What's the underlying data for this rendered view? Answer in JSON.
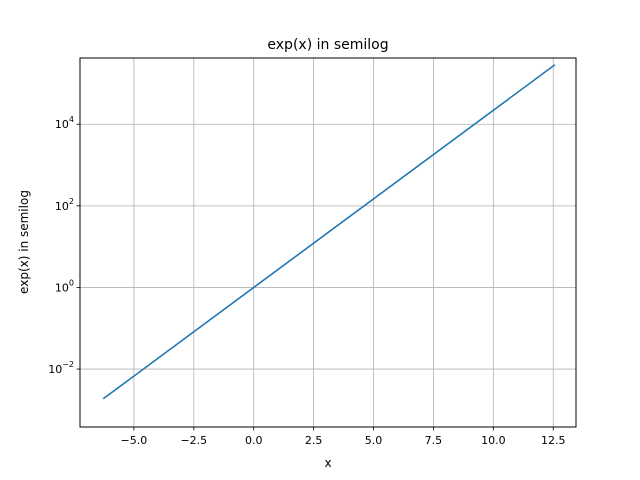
{
  "chart_data": {
    "type": "line",
    "title": "exp(x) in semilog",
    "xlabel": "x",
    "ylabel": "exp(x) in semilog",
    "yscale": "log",
    "grid": true,
    "xlim": [
      -7.25,
      13.45
    ],
    "ylim": [
      0.00038,
      420000
    ],
    "x_ticks": [
      {
        "value": -5.0,
        "label": "−5.0"
      },
      {
        "value": -2.5,
        "label": "−2.5"
      },
      {
        "value": 0.0,
        "label": "0.0"
      },
      {
        "value": 2.5,
        "label": "2.5"
      },
      {
        "value": 5.0,
        "label": "5.0"
      },
      {
        "value": 7.5,
        "label": "7.5"
      },
      {
        "value": 10.0,
        "label": "10.0"
      },
      {
        "value": 12.5,
        "label": "12.5"
      }
    ],
    "y_ticks": [
      {
        "value": 0.01,
        "base": "10",
        "exp": "−2"
      },
      {
        "value": 1,
        "base": "10",
        "exp": "0"
      },
      {
        "value": 100,
        "base": "10",
        "exp": "2"
      },
      {
        "value": 10000,
        "base": "10",
        "exp": "4"
      }
    ],
    "series": [
      {
        "color": "#1f77b4",
        "x": [
          -6.28,
          12.57
        ],
        "y": [
          0.00187,
          287000
        ]
      }
    ]
  }
}
